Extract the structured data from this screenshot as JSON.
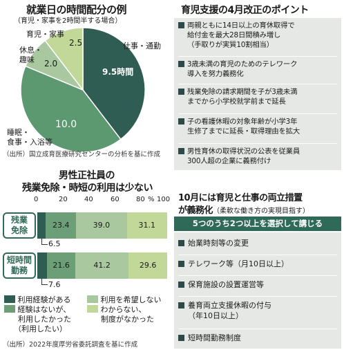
{
  "pie": {
    "title": "就業日の時間配分の例",
    "subtitle": "（育児・家事を2時間半する場合）",
    "slices": [
      {
        "label": "仕事・通勤",
        "value_text": "9.5時間",
        "hours": 9.5,
        "color": "#2f5c53"
      },
      {
        "label": "睡眠・食事・入浴等",
        "value_text": "10.0",
        "hours": 10.0,
        "color": "#5c9870"
      },
      {
        "label": "休息・趣味",
        "value_text": "2.0",
        "hours": 2.0,
        "color": "#a9c8a0"
      },
      {
        "label": "育児・家事",
        "value_text": "2.5",
        "hours": 2.5,
        "color": "#c2d899"
      }
    ],
    "labels": {
      "work": "仕事・通勤",
      "sleep_1": "睡眠・",
      "sleep_2": "食事・入浴等",
      "rest_1": "休息・",
      "rest_2": "趣味",
      "child": "育児・家事"
    },
    "source": "（出所）国立成育医療研究センターの分析を基に作成"
  },
  "bars": {
    "title_1": "男性正社員の",
    "title_2": "残業免除・時短の利用は少ない",
    "axis": [
      "0",
      "20",
      "40",
      "60",
      "80",
      "100"
    ],
    "axis_unit": "%",
    "rows": [
      {
        "label_1": "残業",
        "label_2": "免除",
        "values": [
          6.5,
          23.4,
          39.0,
          31.1
        ],
        "texts": [
          "",
          "23.4",
          "39.0",
          "31.1"
        ],
        "note": "6.5"
      },
      {
        "label_1": "短時間",
        "label_2": "勤務",
        "values": [
          7.6,
          21.6,
          41.2,
          29.6
        ],
        "texts": [
          "",
          "21.6",
          "41.2",
          "29.6"
        ],
        "note": "7.6"
      }
    ],
    "colors": [
      "#2f5c53",
      "#6c9e78",
      "#a9c8a0",
      "#c2d899"
    ],
    "legend": {
      "used": "利用経験がある",
      "hope_no": "利用を希望しない",
      "wanted_1": "経験はないが、",
      "wanted_2": "利用したかった",
      "wanted_3": "（利用したい）",
      "unknown_1": "わからない、",
      "unknown_2": "制度がなかった"
    },
    "source": "（出所）2022年度厚労省委託調査を基に作成"
  },
  "reform": {
    "title": "育児支援の4月改正のポイント",
    "items": [
      [
        "両親ともに14日以上の育休取得で",
        "給付金を最大28日間積み増し",
        "（手取りが実質10割相当）"
      ],
      [
        "3歳未満の育児のためのテレワーク",
        "導入を努力義務化"
      ],
      [
        "残業免除の請求期間を子が3歳未満",
        "までから小学校就学前まで延長"
      ],
      [
        "子の看護休暇の対象年齢が小学3年",
        "生修了までに延長・取得理由を拡大"
      ],
      [
        "男性育休の取得状況の公表を従業員",
        "300人超の企業に義務付け"
      ]
    ]
  },
  "october": {
    "title_1": "10月には育児と仕事の両立措置",
    "title_2": "が義務化",
    "title_2b": "（柔軟な働き方の実現目指す）",
    "band": "5つのうち2つ以上を選択して講じる",
    "items": [
      [
        "始業時刻等の変更"
      ],
      [
        "テレワーク等（月10日以上）"
      ],
      [
        "保育施設の設置運営等"
      ],
      [
        "養育両立支援休暇の付与",
        "（年10日以上）"
      ],
      [
        "短時間勤務制度"
      ]
    ]
  }
}
